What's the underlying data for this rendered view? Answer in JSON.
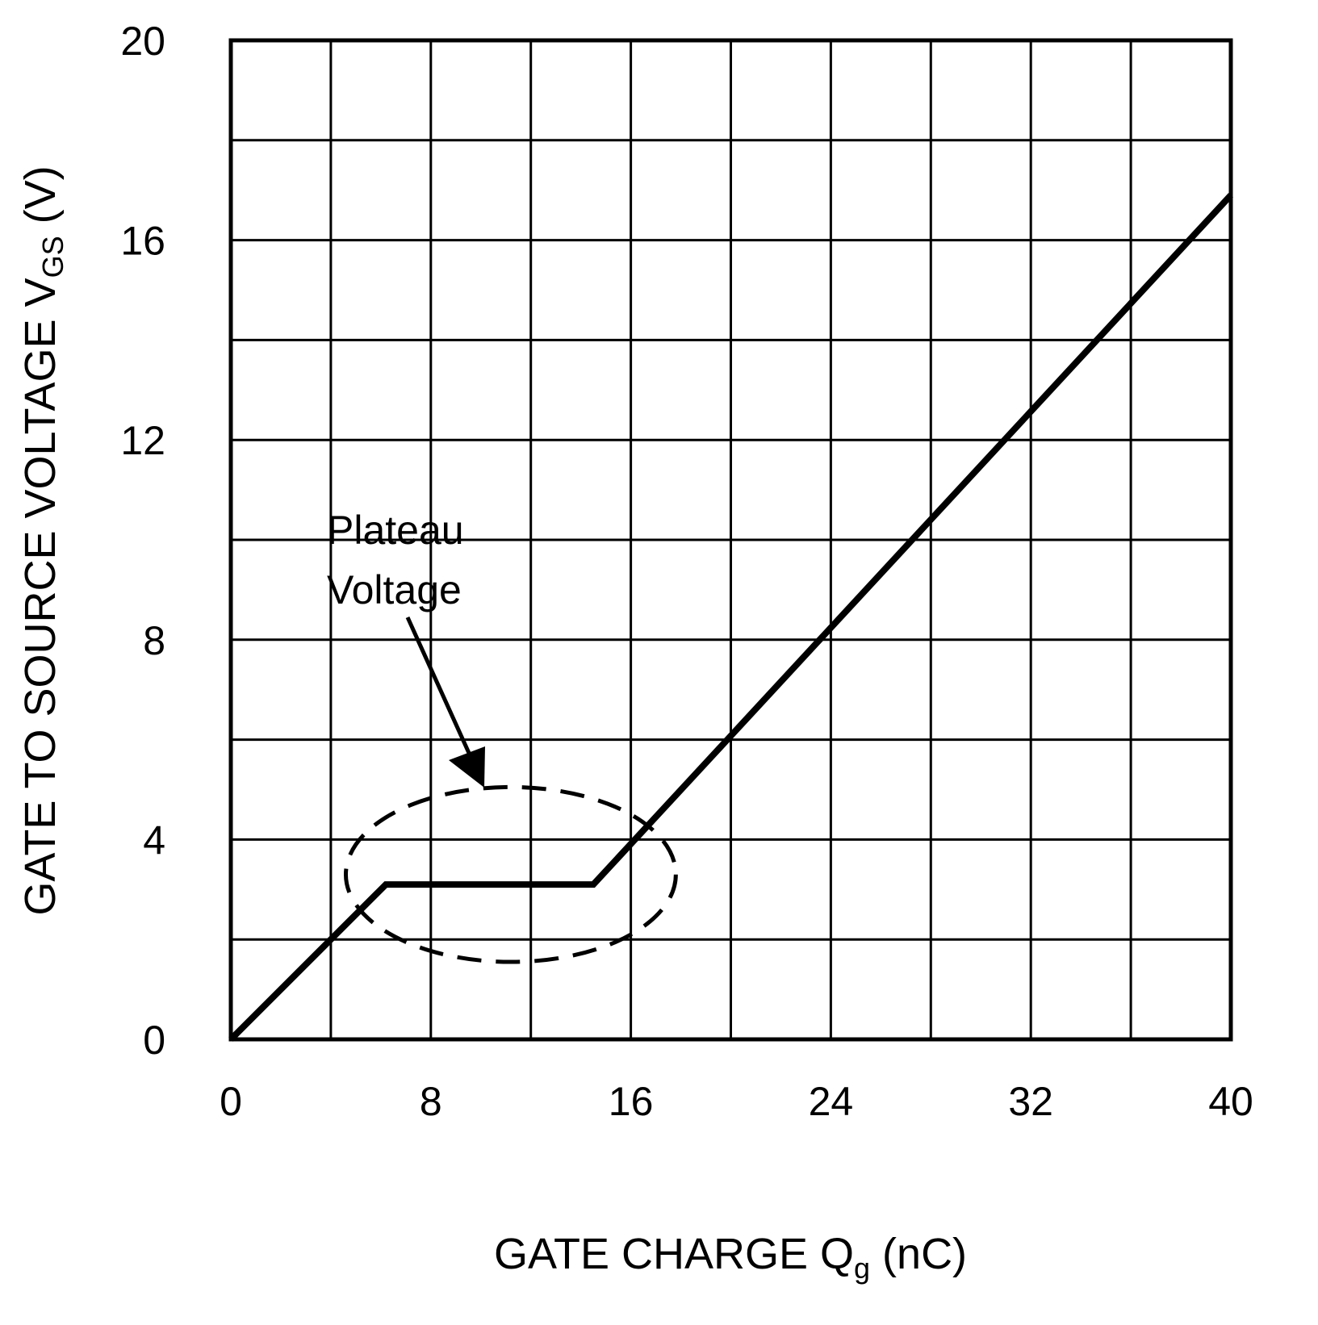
{
  "chart_data": {
    "type": "line",
    "title": "",
    "xlabel": {
      "main": "GATE CHARGE Q",
      "sub": "g",
      "unit": " (nC)"
    },
    "ylabel": {
      "main": "GATE TO SOURCE VOLTAGE V",
      "sub": "GS",
      "unit": " (V)"
    },
    "xlim": [
      0,
      40
    ],
    "ylim": [
      0,
      20
    ],
    "x_ticks": [
      0,
      8,
      16,
      24,
      32,
      40
    ],
    "y_ticks": [
      0,
      4,
      8,
      12,
      16,
      20
    ],
    "x_grid_step": 4,
    "y_grid_step": 2,
    "grid": true,
    "series": [
      {
        "name": "VGS",
        "x": [
          0,
          6.2,
          14.5,
          40
        ],
        "y": [
          0,
          3.1,
          3.1,
          16.9
        ],
        "color": "#000000"
      }
    ],
    "annotations": [
      {
        "lines": [
          "Plateau",
          "Voltage"
        ],
        "target_region": {
          "center": [
            11.2,
            3.3
          ],
          "half_width_nC": 6.6,
          "half_height_V": 1.75
        },
        "style": "dashed-ellipse-with-arrow"
      }
    ]
  }
}
